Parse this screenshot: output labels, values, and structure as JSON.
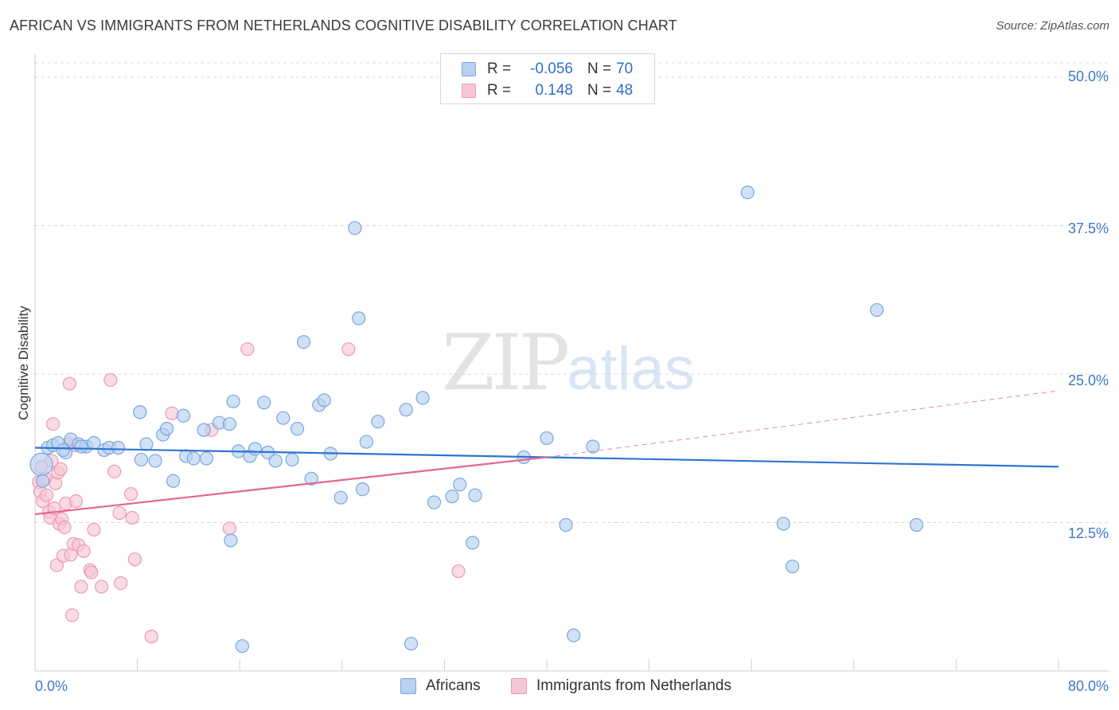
{
  "header": {
    "title": "AFRICAN VS IMMIGRANTS FROM NETHERLANDS COGNITIVE DISABILITY CORRELATION CHART",
    "source": "Source: ZipAtlas.com"
  },
  "watermark": {
    "zip": "ZIP",
    "atlas": "atlas"
  },
  "legend_top": [
    {
      "r_label": "R =",
      "r_value": "-0.056",
      "n_label": "N =",
      "n_value": "70"
    },
    {
      "r_label": "R =",
      "r_value": "0.148",
      "n_label": "N =",
      "n_value": "48"
    }
  ],
  "colors": {
    "blue_fill": "#b8d1f0",
    "blue_stroke": "#7aa6e0",
    "blue_line": "#2e74d0",
    "pink_fill": "#f7c6d4",
    "pink_stroke": "#ec9ab4",
    "pink_line": "#e4668f",
    "grid": "#d8d8d8",
    "axis_text": "#3d78c9"
  },
  "chart_data": {
    "type": "scatter",
    "title": "AFRICAN VS IMMIGRANTS FROM NETHERLANDS COGNITIVE DISABILITY CORRELATION CHART",
    "xlabel": "",
    "ylabel": "Cognitive Disability",
    "xlim": [
      0,
      80
    ],
    "ylim": [
      0,
      50
    ],
    "x_tick_labels": [
      "0.0%",
      "80.0%"
    ],
    "y_ticks": [
      12.5,
      25.0,
      37.5,
      50.0
    ],
    "y_tick_labels": [
      "12.5%",
      "25.0%",
      "37.5%",
      "50.0%"
    ],
    "grid": "horizontal dashed",
    "legend": "top-center and bottom-center",
    "series": [
      {
        "name": "Africans",
        "r": -0.056,
        "n": 70,
        "trend": {
          "x": [
            0,
            80
          ],
          "y": [
            18.8,
            17.2
          ]
        },
        "points": [
          [
            0.5,
            17.4
          ],
          [
            1.0,
            18.8
          ],
          [
            1.4,
            19.0
          ],
          [
            1.8,
            19.2
          ],
          [
            2.4,
            18.4
          ],
          [
            2.8,
            19.5
          ],
          [
            3.4,
            19.1
          ],
          [
            4.0,
            18.9
          ],
          [
            4.6,
            19.2
          ],
          [
            5.4,
            18.6
          ],
          [
            5.8,
            18.8
          ],
          [
            8.2,
            21.8
          ],
          [
            8.3,
            17.8
          ],
          [
            8.7,
            19.1
          ],
          [
            9.4,
            17.7
          ],
          [
            10.0,
            19.9
          ],
          [
            10.3,
            20.4
          ],
          [
            10.8,
            16.0
          ],
          [
            11.6,
            21.5
          ],
          [
            11.8,
            18.1
          ],
          [
            12.4,
            17.9
          ],
          [
            13.2,
            20.3
          ],
          [
            13.4,
            17.9
          ],
          [
            14.4,
            20.9
          ],
          [
            15.2,
            20.8
          ],
          [
            15.3,
            11.0
          ],
          [
            15.5,
            22.7
          ],
          [
            15.9,
            18.5
          ],
          [
            16.2,
            2.1
          ],
          [
            16.8,
            18.1
          ],
          [
            17.2,
            18.7
          ],
          [
            17.9,
            22.6
          ],
          [
            18.2,
            18.4
          ],
          [
            18.8,
            17.7
          ],
          [
            19.4,
            21.3
          ],
          [
            20.1,
            17.8
          ],
          [
            20.5,
            20.4
          ],
          [
            21.0,
            27.7
          ],
          [
            21.6,
            16.2
          ],
          [
            22.2,
            22.4
          ],
          [
            22.6,
            22.8
          ],
          [
            23.1,
            18.3
          ],
          [
            23.9,
            14.6
          ],
          [
            25.0,
            37.3
          ],
          [
            25.3,
            29.7
          ],
          [
            25.6,
            15.3
          ],
          [
            25.9,
            19.3
          ],
          [
            26.8,
            21.0
          ],
          [
            29.0,
            22.0
          ],
          [
            29.4,
            2.3
          ],
          [
            30.3,
            23.0
          ],
          [
            31.2,
            14.2
          ],
          [
            32.6,
            14.7
          ],
          [
            33.2,
            15.7
          ],
          [
            34.2,
            10.8
          ],
          [
            34.4,
            14.8
          ],
          [
            38.2,
            18.0
          ],
          [
            40.0,
            19.6
          ],
          [
            41.5,
            12.3
          ],
          [
            42.1,
            3.0
          ],
          [
            43.6,
            18.9
          ],
          [
            55.7,
            40.3
          ],
          [
            58.5,
            12.4
          ],
          [
            59.2,
            8.8
          ],
          [
            65.8,
            30.4
          ],
          [
            68.9,
            12.3
          ],
          [
            0.6,
            16.0
          ],
          [
            2.2,
            18.6
          ],
          [
            3.6,
            18.9
          ],
          [
            6.5,
            18.8
          ]
        ]
      },
      {
        "name": "Immigrants from Netherlands",
        "r": 0.148,
        "n": 48,
        "trend": {
          "x": [
            0,
            40
          ],
          "y": [
            13.2,
            18.0
          ]
        },
        "trend_dashed": {
          "x": [
            40,
            80
          ],
          "y": [
            18.0,
            23.6
          ]
        },
        "points": [
          [
            0.3,
            15.9
          ],
          [
            0.4,
            15.1
          ],
          [
            0.6,
            14.3
          ],
          [
            0.8,
            16.2
          ],
          [
            0.9,
            14.8
          ],
          [
            1.1,
            13.4
          ],
          [
            1.2,
            12.9
          ],
          [
            1.4,
            20.8
          ],
          [
            1.5,
            13.7
          ],
          [
            1.6,
            15.8
          ],
          [
            1.7,
            8.9
          ],
          [
            1.8,
            16.7
          ],
          [
            1.9,
            12.4
          ],
          [
            2.0,
            17.0
          ],
          [
            2.1,
            12.8
          ],
          [
            2.2,
            9.7
          ],
          [
            2.3,
            12.1
          ],
          [
            2.4,
            14.1
          ],
          [
            2.6,
            19.1
          ],
          [
            2.7,
            24.2
          ],
          [
            2.8,
            9.8
          ],
          [
            2.9,
            4.7
          ],
          [
            3.0,
            10.7
          ],
          [
            3.2,
            14.3
          ],
          [
            3.4,
            10.6
          ],
          [
            3.6,
            7.1
          ],
          [
            3.8,
            10.1
          ],
          [
            4.3,
            8.5
          ],
          [
            4.4,
            8.3
          ],
          [
            4.6,
            11.9
          ],
          [
            5.2,
            7.1
          ],
          [
            5.9,
            24.5
          ],
          [
            6.2,
            16.8
          ],
          [
            6.6,
            13.3
          ],
          [
            6.7,
            7.4
          ],
          [
            7.5,
            14.9
          ],
          [
            7.6,
            12.9
          ],
          [
            7.8,
            9.4
          ],
          [
            9.1,
            2.9
          ],
          [
            10.7,
            21.7
          ],
          [
            13.8,
            20.3
          ],
          [
            15.2,
            12.0
          ],
          [
            16.6,
            27.1
          ],
          [
            24.5,
            27.1
          ],
          [
            33.1,
            8.4
          ],
          [
            0.5,
            17.2
          ],
          [
            1.3,
            17.7
          ],
          [
            3.1,
            19.0
          ]
        ]
      }
    ]
  },
  "legend_bottom": [
    {
      "label": "Africans"
    },
    {
      "label": "Immigrants from Netherlands"
    }
  ]
}
